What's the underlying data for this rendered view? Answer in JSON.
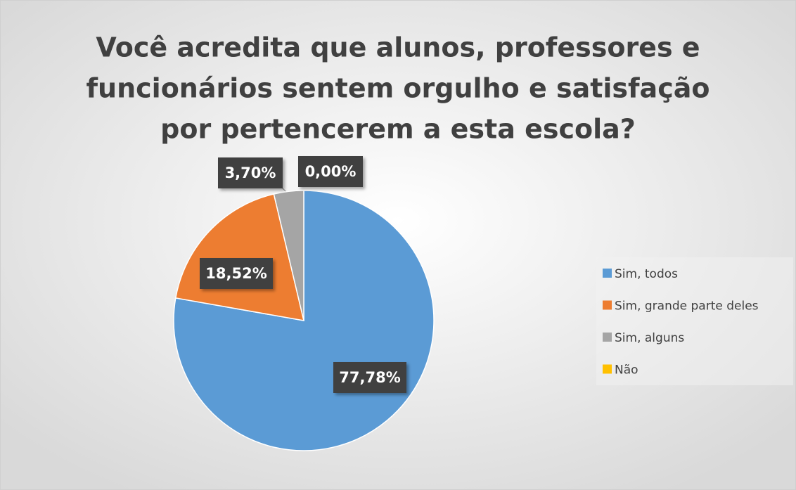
{
  "chart_data": {
    "type": "pie",
    "title": [
      "Você acredita que alunos, professores e",
      "funcionários sentem orgulho e satisfação",
      "por pertencerem a esta escola?"
    ],
    "categories": [
      "Sim, todos",
      "Sim, grande parte deles",
      "Sim, alguns",
      "Não"
    ],
    "values": [
      77.78,
      18.52,
      3.7,
      0.0
    ],
    "value_labels": [
      "77,78%",
      "18,52%",
      "3,70%",
      "0,00%"
    ],
    "colors": [
      "#5b9bd5",
      "#ed7d31",
      "#a5a5a5",
      "#ffc000"
    ],
    "legend": "right"
  }
}
